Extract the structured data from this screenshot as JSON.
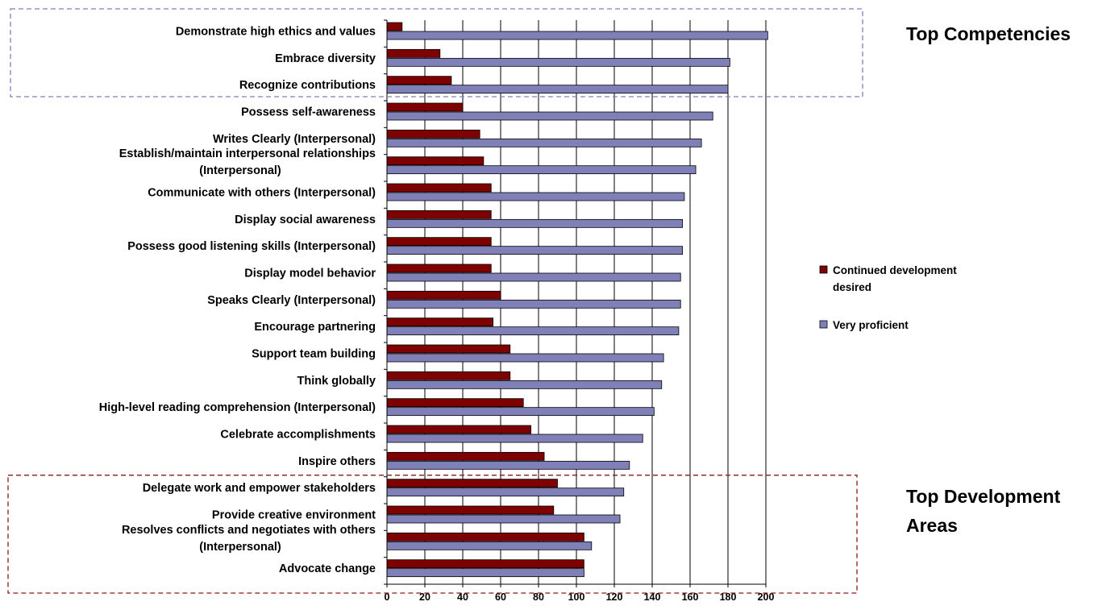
{
  "chart_data": {
    "type": "bar",
    "orientation": "horizontal",
    "categories": [
      "Demonstrate high ethics and values",
      "Embrace diversity",
      "Recognize contributions",
      "Possess self-awareness",
      "Writes Clearly (Interpersonal)",
      "Establish/maintain interpersonal relationships (Interpersonal)",
      "Communicate with others (Interpersonal)",
      "Display social awareness",
      "Possess good listening skills (Interpersonal)",
      "Display model behavior",
      "Speaks Clearly (Interpersonal)",
      "Encourage partnering",
      "Support team building",
      "Think globally",
      "High-level reading comprehension (Interpersonal)",
      "Celebrate accomplishments",
      "Inspire others",
      "Delegate work and empower stakeholders",
      "Provide creative environment",
      "Resolves conflicts and negotiates with others (Interpersonal)",
      "Advocate change"
    ],
    "series": [
      {
        "name": "Continued development desired",
        "color": "#7f0000",
        "values": [
          8,
          28,
          34,
          40,
          49,
          51,
          55,
          55,
          55,
          55,
          60,
          56,
          65,
          65,
          72,
          76,
          83,
          90,
          88,
          104,
          104
        ]
      },
      {
        "name": "Very proficient",
        "color": "#8080b8",
        "values": [
          201,
          181,
          180,
          172,
          166,
          163,
          157,
          156,
          156,
          155,
          155,
          154,
          146,
          145,
          141,
          135,
          128,
          125,
          123,
          108,
          104
        ]
      }
    ],
    "xlim": [
      0,
      200
    ],
    "xticks": [
      0,
      20,
      40,
      60,
      80,
      100,
      120,
      140,
      160,
      180,
      200
    ],
    "grid": "vertical",
    "legend_position": "right",
    "callouts": [
      {
        "label": "Top Competencies",
        "color": "#7f7fbf",
        "categories": [
          0,
          1,
          2
        ]
      },
      {
        "label": "Top Development Areas",
        "color": "#8b1a1a",
        "categories": [
          17,
          18,
          19,
          20
        ]
      }
    ]
  }
}
